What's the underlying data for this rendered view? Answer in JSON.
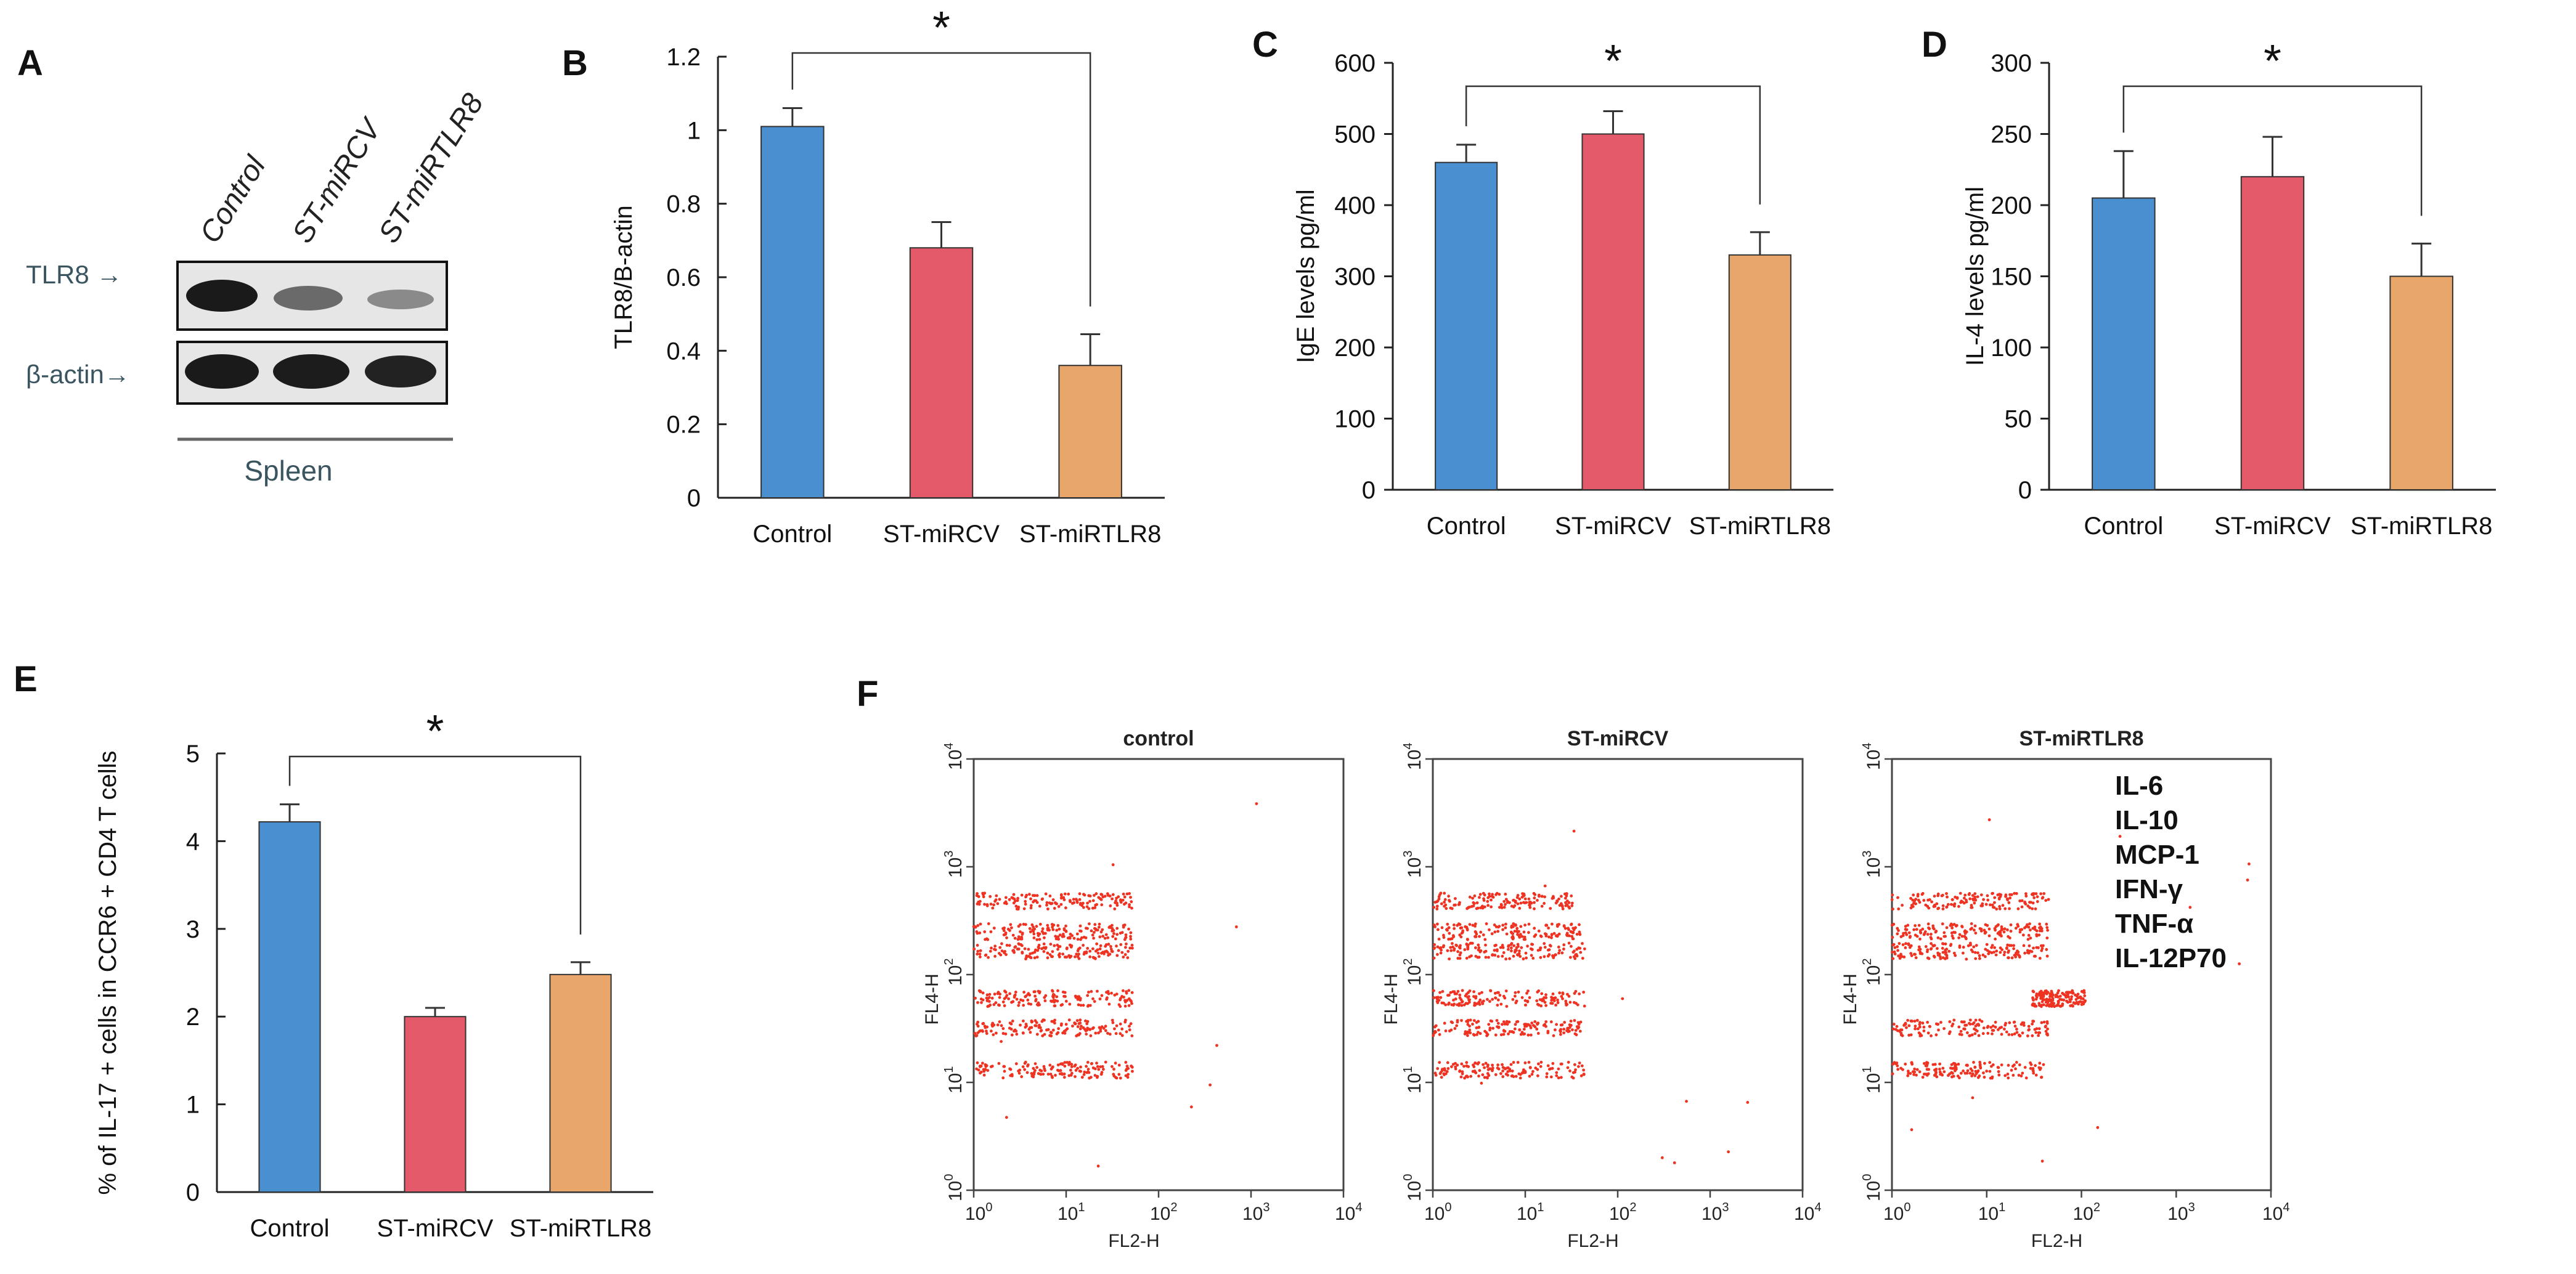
{
  "colors": {
    "control": "#4a8fd0",
    "mircv": "#e55a6a",
    "mirtlr8": "#e9a66a",
    "dot": "#ee3322",
    "axis": "#222222"
  },
  "panels": {
    "A": "A",
    "B": "B",
    "C": "C",
    "D": "D",
    "E": "E",
    "F": "F"
  },
  "significance_marker": "*",
  "western_blot": {
    "lanes": [
      "Control",
      "ST-miRCV",
      "ST-miRTLR8"
    ],
    "rows": [
      "TLR8 →",
      "β-actin→"
    ],
    "tissue": "Spleen"
  },
  "chart_data": [
    {
      "panel": "B",
      "type": "bar",
      "categories": [
        "Control",
        "ST-miRCV",
        "ST-miRTLR8"
      ],
      "values": [
        1.01,
        0.68,
        0.36
      ],
      "errors": [
        0.05,
        0.07,
        0.085
      ],
      "ylabel": "TLR8/B-actin",
      "ylim": [
        0,
        1.2
      ],
      "yticks": [
        "0",
        "0.2",
        "0.4",
        "0.6",
        "0.8",
        "1",
        "1.2"
      ],
      "significance": [
        "Control",
        "ST-miRTLR8"
      ]
    },
    {
      "panel": "C",
      "type": "bar",
      "categories": [
        "Control",
        "ST-miRCV",
        "ST-miRTLR8"
      ],
      "values": [
        460,
        500,
        330
      ],
      "errors": [
        25,
        32,
        32
      ],
      "ylabel": "IgE levels  pg/ml",
      "ylim": [
        0,
        600
      ],
      "yticks": [
        "0",
        "100",
        "200",
        "300",
        "400",
        "500",
        "600"
      ],
      "significance": [
        "Control",
        "ST-miRTLR8"
      ]
    },
    {
      "panel": "D",
      "type": "bar",
      "categories": [
        "Control",
        "ST-miRCV",
        "ST-miRTLR8"
      ],
      "values": [
        205,
        220,
        150
      ],
      "errors": [
        33,
        28,
        23
      ],
      "ylabel": "IL-4 levels  pg/ml",
      "ylim": [
        0,
        300
      ],
      "yticks": [
        "0",
        "50",
        "100",
        "150",
        "200",
        "250",
        "300"
      ],
      "significance": [
        "Control",
        "ST-miRTLR8"
      ]
    },
    {
      "panel": "E",
      "type": "bar",
      "categories": [
        "Control",
        "ST-miRCV",
        "ST-miRTLR8"
      ],
      "values": [
        4.22,
        2.0,
        2.48
      ],
      "errors": [
        0.2,
        0.1,
        0.14
      ],
      "ylabel": "% of IL-17 + cells in CCR6 + CD4 T cells",
      "ylim": [
        0,
        5
      ],
      "yticks": [
        "0",
        "1",
        "2",
        "3",
        "4",
        "5"
      ],
      "significance": [
        "Control",
        "ST-miRTLR8"
      ]
    },
    {
      "panel": "F",
      "type": "scatter",
      "plots": [
        {
          "title": "control",
          "clusters": [
            {
              "xmin": 1.0,
              "xmax": 52,
              "y": 480
            },
            {
              "xmin": 1.0,
              "xmax": 52,
              "y": 250
            },
            {
              "xmin": 1.0,
              "xmax": 52,
              "y": 165
            },
            {
              "xmin": 1.0,
              "xmax": 52,
              "y": 60
            },
            {
              "xmin": 1.0,
              "xmax": 52,
              "y": 32
            },
            {
              "xmin": 1.0,
              "xmax": 52,
              "y": 13
            }
          ]
        },
        {
          "title": "ST-miRCV",
          "clusters": [
            {
              "xmin": 1.0,
              "xmax": 35,
              "y": 480
            },
            {
              "xmin": 1.0,
              "xmax": 45,
              "y": 250
            },
            {
              "xmin": 1.0,
              "xmax": 45,
              "y": 165
            },
            {
              "xmin": 1.0,
              "xmax": 45,
              "y": 60
            },
            {
              "xmin": 1.0,
              "xmax": 40,
              "y": 32
            },
            {
              "xmin": 1.0,
              "xmax": 45,
              "y": 13
            }
          ]
        },
        {
          "title": "ST-miRTLR8",
          "clusters": [
            {
              "xmin": 1.0,
              "xmax": 45,
              "y": 480
            },
            {
              "xmin": 1.0,
              "xmax": 45,
              "y": 250
            },
            {
              "xmin": 1.0,
              "xmax": 45,
              "y": 165
            },
            {
              "xmin": 30,
              "xmax": 110,
              "y": 60
            },
            {
              "xmin": 1.0,
              "xmax": 45,
              "y": 32
            },
            {
              "xmin": 1.0,
              "xmax": 45,
              "y": 13
            }
          ]
        }
      ],
      "xlabel": "FL2-H",
      "ylabel": "FL4-H",
      "xlim": [
        1,
        10000
      ],
      "ylim": [
        1,
        10000
      ],
      "tick_base": "10",
      "tick_exponents": [
        "0",
        "1",
        "2",
        "3",
        "4"
      ],
      "legend": [
        "IL-6",
        "IL-10",
        "MCP-1",
        "IFN-γ",
        "TNF-α",
        "IL-12P70"
      ]
    }
  ]
}
